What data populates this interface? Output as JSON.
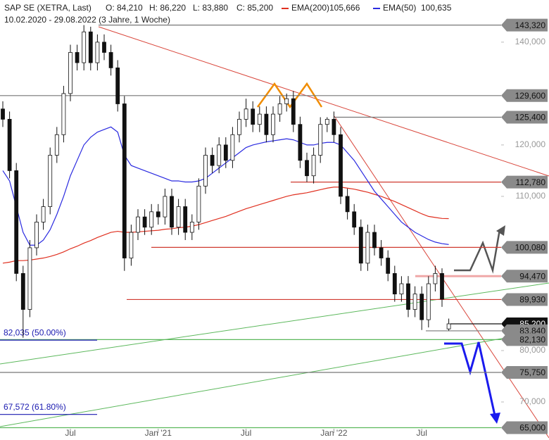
{
  "chart_data": {
    "type": "candlestick",
    "title": "SAP SE (XETRA, Last)",
    "info": [
      "O: 84,210",
      "H: 86,220",
      "L: 83,880",
      "C: 85,200"
    ],
    "subtitle": "10.02.2020 - 29.08.2022 (3 Jahre, 1 Woche)",
    "categories": [
      null,
      null,
      null,
      null,
      null,
      null,
      null,
      null,
      null,
      null,
      "Jul",
      null,
      null,
      null,
      null,
      null,
      null,
      null,
      null,
      null,
      null,
      null,
      null,
      "Jan '21",
      null,
      null,
      null,
      null,
      null,
      null,
      null,
      null,
      null,
      null,
      null,
      null,
      "Jul",
      null,
      null,
      null,
      null,
      null,
      null,
      null,
      null,
      null,
      null,
      null,
      null,
      "Jan '22",
      null,
      null,
      null,
      null,
      null,
      null,
      null,
      null,
      null,
      null,
      null,
      null,
      "Jul",
      null,
      null,
      null,
      null
    ],
    "open": [
      127000,
      125000,
      115000,
      95000,
      88000,
      100000,
      105000,
      108000,
      118000,
      122000,
      130000,
      138000,
      136000,
      142000,
      136000,
      140000,
      138000,
      135000,
      128000,
      98000,
      103000,
      106000,
      104000,
      107000,
      106000,
      110000,
      104000,
      108000,
      103000,
      105000,
      112000,
      118000,
      116000,
      120000,
      117000,
      122000,
      125000,
      127000,
      124000,
      126000,
      122000,
      126000,
      128000,
      129000,
      124000,
      117000,
      114000,
      118000,
      124000,
      125000,
      122000,
      110000,
      107000,
      104000,
      97000,
      103000,
      100000,
      98000,
      95000,
      91000,
      93000,
      88000,
      91000,
      86000,
      93000,
      95000,
      84210
    ],
    "high": [
      128500,
      126500,
      116500,
      96500,
      101500,
      106500,
      109500,
      119500,
      123500,
      131500,
      139500,
      139500,
      143320,
      143000,
      141500,
      141500,
      139500,
      136500,
      129500,
      104500,
      107500,
      107500,
      108500,
      108500,
      111500,
      111500,
      109500,
      109500,
      106500,
      113500,
      119500,
      119500,
      121500,
      121500,
      123500,
      126500,
      129000,
      128500,
      127500,
      127500,
      127500,
      129500,
      130000,
      130500,
      125500,
      118500,
      119500,
      125400,
      125400,
      126500,
      123500,
      111500,
      108500,
      105500,
      104500,
      104500,
      101500,
      99500,
      96500,
      94470,
      94500,
      92500,
      92500,
      94470,
      96500,
      96000,
      86220
    ],
    "low": [
      123500,
      113500,
      93500,
      82500,
      86500,
      98500,
      103500,
      106500,
      116500,
      120500,
      128500,
      134500,
      134500,
      134500,
      134500,
      136500,
      133500,
      126500,
      95500,
      96500,
      101500,
      102500,
      102500,
      104500,
      104500,
      102500,
      102500,
      101500,
      101500,
      103500,
      110500,
      114500,
      114500,
      115500,
      115500,
      120500,
      123500,
      122500,
      122500,
      120500,
      120500,
      124500,
      126500,
      122500,
      115500,
      112780,
      112500,
      116500,
      122500,
      120500,
      108500,
      105500,
      102500,
      95500,
      95500,
      98500,
      96500,
      93500,
      89500,
      89500,
      86500,
      86500,
      84000,
      84500,
      91500,
      88500,
      83880
    ],
    "close": [
      125000,
      115000,
      95000,
      88000,
      100000,
      105000,
      108000,
      118000,
      122000,
      130000,
      138000,
      136000,
      142000,
      136000,
      140000,
      138000,
      135000,
      128000,
      98000,
      103000,
      106000,
      104000,
      107000,
      106000,
      110000,
      104000,
      108000,
      103000,
      105000,
      112000,
      118000,
      116000,
      120000,
      117000,
      122000,
      125000,
      127000,
      124000,
      126000,
      122000,
      126000,
      128000,
      129000,
      124000,
      117000,
      114000,
      118000,
      124000,
      125000,
      122000,
      110000,
      107000,
      104000,
      97000,
      103000,
      100000,
      98000,
      95000,
      91000,
      93000,
      88000,
      91000,
      86000,
      93000,
      95000,
      90000,
      85200
    ],
    "series": [
      {
        "name": "EMA(200)",
        "color": "#e03020",
        "last_label": "105,666",
        "values": [
          97000,
          97200,
          97500,
          97500,
          97600,
          97800,
          98000,
          98300,
          98700,
          99200,
          99800,
          100300,
          100900,
          101400,
          102000,
          102500,
          103000,
          103200,
          103000,
          103000,
          103100,
          103200,
          103300,
          103400,
          103600,
          103700,
          103900,
          104000,
          104200,
          104500,
          104900,
          105300,
          105700,
          106100,
          106600,
          107100,
          107600,
          108000,
          108400,
          108800,
          109200,
          109600,
          110000,
          110300,
          110500,
          110700,
          111000,
          111300,
          111600,
          111800,
          111800,
          111600,
          111400,
          111100,
          110800,
          110400,
          110000,
          109500,
          109000,
          108400,
          107800,
          107200,
          106600,
          106100,
          105900,
          105700,
          105666
        ]
      },
      {
        "name": "EMA(50)",
        "color": "#2a2ae0",
        "last_label": "100,635",
        "values": [
          115000,
          113000,
          108000,
          103000,
          100500,
          100500,
          101500,
          103500,
          106500,
          110000,
          114000,
          117000,
          120000,
          121500,
          122500,
          123000,
          123500,
          122500,
          118000,
          116000,
          115500,
          115000,
          114500,
          114000,
          113500,
          113000,
          113000,
          112800,
          112800,
          113000,
          113500,
          114500,
          115500,
          116500,
          117500,
          118500,
          119500,
          120000,
          120300,
          120600,
          120800,
          121000,
          121200,
          121000,
          120500,
          120000,
          120000,
          120300,
          120500,
          120500,
          120000,
          118500,
          117000,
          115000,
          113000,
          111000,
          109500,
          108000,
          106500,
          105000,
          104000,
          103000,
          102300,
          101600,
          101100,
          100800,
          100635
        ]
      }
    ],
    "levels": [
      {
        "value": 143320,
        "label": "143,320",
        "color": "#777777"
      },
      {
        "value": 129600,
        "label": "129,600",
        "color": "#777777"
      },
      {
        "value": 125400,
        "label": "125,400",
        "color": "#777777"
      },
      {
        "value": 112780,
        "label": "112,780",
        "color": "#d03a30"
      },
      {
        "value": 100080,
        "label": "100,080",
        "color": "#d03a30"
      },
      {
        "value": 94470,
        "label": "94,470",
        "color": "#f0a8a8"
      },
      {
        "value": 89930,
        "label": "89,930",
        "color": "#d03a30"
      },
      {
        "value": 85200,
        "label": "85,200",
        "color": "#111111"
      },
      {
        "value": 83840,
        "label": "83,840",
        "color": "#777777"
      },
      {
        "value": 82130,
        "label": "82,130",
        "color": "#5cb85c"
      },
      {
        "value": 75750,
        "label": "75,750",
        "color": "#777777"
      },
      {
        "value": 65000,
        "label": "65,000",
        "color": "#5cb85c"
      }
    ],
    "fibonacci": [
      {
        "value": 82035,
        "label": "82,035 (50.00%)"
      },
      {
        "value": 67572,
        "label": "67,572 (61.80%)"
      }
    ],
    "ylim": [
      62600,
      148200
    ],
    "yticks": [
      {
        "value": 140000,
        "label": "140,000"
      },
      {
        "value": 120000,
        "label": "120,000"
      },
      {
        "value": 110000,
        "label": "110,000"
      },
      {
        "value": 80000,
        "label": "80,000"
      },
      {
        "value": 70000,
        "label": "70,000"
      }
    ]
  }
}
